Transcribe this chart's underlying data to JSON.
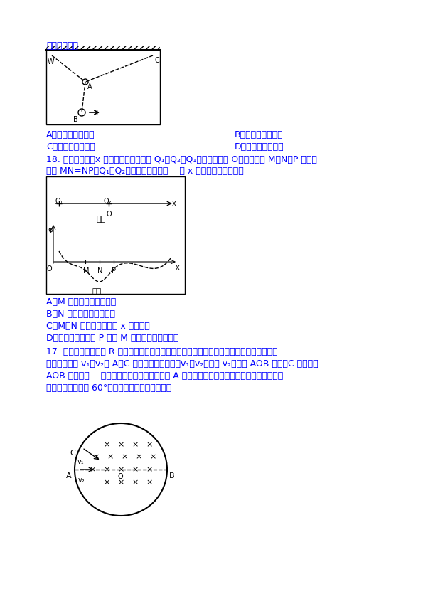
{
  "bg_color": "#ffffff",
  "text_color": "#0000ff",
  "black_color": "#000000",
  "title_text": "的变化情况是",
  "section_header_color": "#0000cd",
  "fig_width": 5.95,
  "fig_height": 8.42,
  "dpi": 100,
  "line1": "的变化情况是",
  "ans_A1": "A．乙变大，乙减小",
  "ans_B1": "B．乙变大，乙不变",
  "ans_C1": "C．乙减小，乙变大",
  "ans_D1": "D．乙不变，乙变大",
  "q18_text": "18. 如图甲所示，x 轴上固定两个点电荷 Q₁、Q₂（Q₁位于坐标原点 O），其上有 M、N、P 三点，",
  "q18_text2": "间距 MN=NP，Q₁、Q₂在轴上产生的电势    随 x 变化关系如图乙，则",
  "ans_A2": "A．M 点电场强度大小为零",
  "ans_B2": "B．N 点电场强度大小为零",
  "ans_C2": "C．M、N 之间电场方向沿 x 轴负方向",
  "ans_D2": "D．一正试探电荷从 P 移到 M 过程中，电场力做功",
  "q17_text": "17. 如图所示，半径为 R 的圆形区域内存在垂直于纸面向里的匀强磁场，两个相同的带正电粒",
  "q17_text2": "子分别以速度 v₁、v₂从 A、C 两点同时射入磁场；v₁、v₂平行且 v₂沿直径 AOB 方向，C 点与直径",
  "q17_text3": "AOB 的距离为    ，两粒子同时从磁场射出，从 A 点射入的粒子射出磁场时的速度方向与初速",
  "q17_text4": "度方向间的夹角为 60°，不计粒子受到的重力；则"
}
